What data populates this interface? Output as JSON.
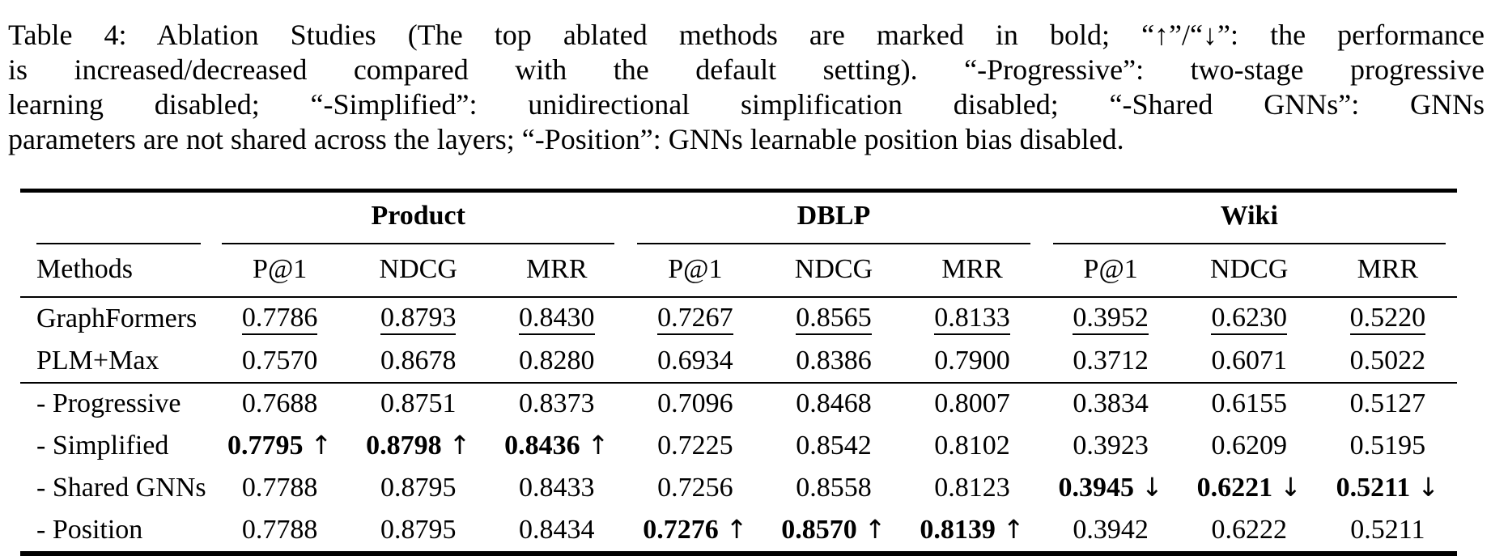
{
  "caption": {
    "lines": [
      "Table 4: Ablation Studies (The top ablated methods are marked in bold; “↑”/“↓”: the performance",
      "is increased/decreased compared with the default setting). “-Progressive”: two-stage progressive",
      "learning disabled; “-Simplified”: unidirectional simplification disabled; “-Shared GNNs”: GNNs",
      "parameters are not shared across the layers; “-Position”: GNNs learnable position bias disabled."
    ]
  },
  "table": {
    "groups": [
      "Product",
      "DBLP",
      "Wiki"
    ],
    "methods_header": "Methods",
    "metric_headers": [
      "P@1",
      "NDCG",
      "MRR",
      "P@1",
      "NDCG",
      "MRR",
      "P@1",
      "NDCG",
      "MRR"
    ],
    "rows": [
      {
        "method": "GraphFormers",
        "values": [
          {
            "v": "0.7786"
          },
          {
            "v": "0.8793"
          },
          {
            "v": "0.8430"
          },
          {
            "v": "0.7267"
          },
          {
            "v": "0.8565"
          },
          {
            "v": "0.8133"
          },
          {
            "v": "0.3952"
          },
          {
            "v": "0.6230"
          },
          {
            "v": "0.5220"
          }
        ]
      },
      {
        "method": "PLM+Max",
        "values": [
          {
            "v": "0.7570"
          },
          {
            "v": "0.8678"
          },
          {
            "v": "0.8280"
          },
          {
            "v": "0.6934"
          },
          {
            "v": "0.8386"
          },
          {
            "v": "0.7900"
          },
          {
            "v": "0.3712"
          },
          {
            "v": "0.6071"
          },
          {
            "v": "0.5022"
          }
        ]
      },
      {
        "method": "- Progressive",
        "values": [
          {
            "v": "0.7688"
          },
          {
            "v": "0.8751"
          },
          {
            "v": "0.8373"
          },
          {
            "v": "0.7096"
          },
          {
            "v": "0.8468"
          },
          {
            "v": "0.8007"
          },
          {
            "v": "0.3834"
          },
          {
            "v": "0.6155"
          },
          {
            "v": "0.5127"
          }
        ]
      },
      {
        "method": "- Simplified",
        "values": [
          {
            "v": "0.7795",
            "arrow": "↑"
          },
          {
            "v": "0.8798",
            "arrow": "↑"
          },
          {
            "v": "0.8436",
            "arrow": "↑"
          },
          {
            "v": "0.7225"
          },
          {
            "v": "0.8542"
          },
          {
            "v": "0.8102"
          },
          {
            "v": "0.3923"
          },
          {
            "v": "0.6209"
          },
          {
            "v": "0.5195"
          }
        ]
      },
      {
        "method": "- Shared GNNs",
        "values": [
          {
            "v": "0.7788"
          },
          {
            "v": "0.8795"
          },
          {
            "v": "0.8433"
          },
          {
            "v": "0.7256"
          },
          {
            "v": "0.8558"
          },
          {
            "v": "0.8123"
          },
          {
            "v": "0.3945",
            "arrow": "↓"
          },
          {
            "v": "0.6221",
            "arrow": "↓"
          },
          {
            "v": "0.5211",
            "arrow": "↓"
          }
        ]
      },
      {
        "method": "- Position",
        "values": [
          {
            "v": "0.7788"
          },
          {
            "v": "0.8795"
          },
          {
            "v": "0.8434"
          },
          {
            "v": "0.7276",
            "arrow": "↑"
          },
          {
            "v": "0.8570",
            "arrow": "↑"
          },
          {
            "v": "0.8139",
            "arrow": "↑"
          },
          {
            "v": "0.3942"
          },
          {
            "v": "0.6222"
          },
          {
            "v": "0.5211"
          }
        ]
      }
    ]
  }
}
